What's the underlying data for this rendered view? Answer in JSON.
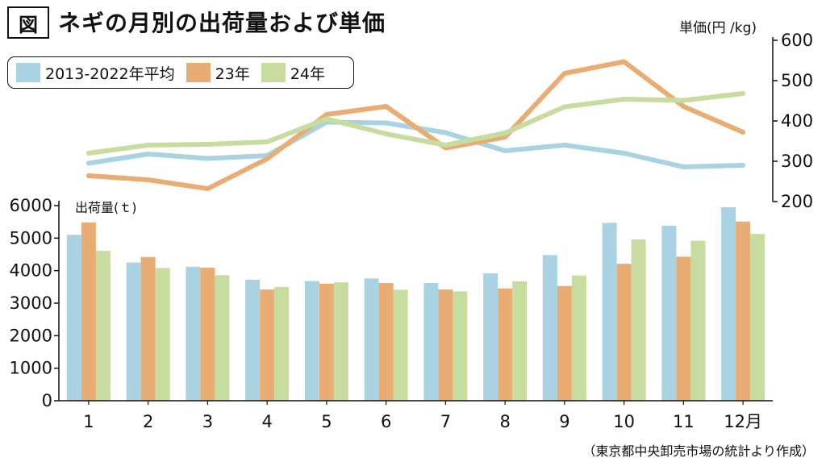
{
  "figure_label": "図",
  "title": "ネギの月別の出荷量および単価",
  "source_note": "（東京都中央卸売市場の統計より作成）",
  "legend": [
    {
      "label": "2013-2022年平均",
      "color": "#a9d3e3"
    },
    {
      "label": "23年",
      "color": "#e9ad74"
    },
    {
      "label": "24年",
      "color": "#c6dd9f"
    }
  ],
  "chart_data": [
    {
      "type": "bar",
      "ylabel": "出荷量(ｔ)",
      "ylim": [
        0,
        6000
      ],
      "yticks": [
        0,
        1000,
        2000,
        3000,
        4000,
        5000,
        6000
      ],
      "categories": [
        "1",
        "2",
        "3",
        "4",
        "5",
        "6",
        "7",
        "8",
        "9",
        "10",
        "11",
        "12月"
      ],
      "series": [
        {
          "name": "2013-2022年平均",
          "color": "#a9d3e3",
          "values": [
            5100,
            4250,
            4120,
            3720,
            3680,
            3760,
            3620,
            3920,
            4480,
            5470,
            5380,
            5950
          ]
        },
        {
          "name": "23年",
          "color": "#e9ad74",
          "values": [
            5480,
            4420,
            4090,
            3420,
            3600,
            3620,
            3420,
            3450,
            3530,
            4210,
            4430,
            5510
          ]
        },
        {
          "name": "24年",
          "color": "#c6dd9f",
          "values": [
            4610,
            4080,
            3860,
            3500,
            3640,
            3410,
            3360,
            3670,
            3850,
            4960,
            4920,
            5130
          ]
        }
      ]
    },
    {
      "type": "line",
      "ylabel": "単価(円 /kg)",
      "ylim": [
        200,
        600
      ],
      "yticks": [
        200,
        300,
        400,
        500,
        600
      ],
      "categories": [
        "1",
        "2",
        "3",
        "4",
        "5",
        "6",
        "7",
        "8",
        "9",
        "10",
        "11",
        "12月"
      ],
      "series": [
        {
          "name": "2013-2022年平均",
          "color": "#a9d3e3",
          "values": [
            295,
            318,
            307,
            314,
            397,
            395,
            371,
            326,
            340,
            320,
            286,
            290
          ]
        },
        {
          "name": "23年",
          "color": "#e9ad74",
          "values": [
            264,
            254,
            232,
            306,
            416,
            436,
            333,
            360,
            518,
            547,
            436,
            372
          ]
        },
        {
          "name": "24年",
          "color": "#c6dd9f",
          "values": [
            320,
            340,
            342,
            348,
            405,
            368,
            340,
            370,
            435,
            454,
            451,
            468
          ]
        }
      ]
    }
  ]
}
